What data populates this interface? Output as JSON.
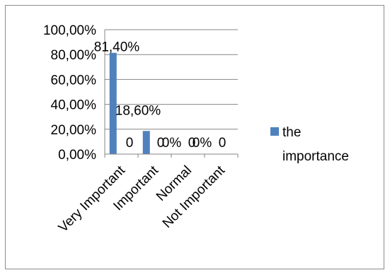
{
  "chart_data": {
    "type": "bar",
    "categories": [
      "Very Important",
      "Important",
      "Normal",
      "Not Important"
    ],
    "series": [
      {
        "name": "the importance",
        "values": [
          81.4,
          18.6,
          0,
          0
        ],
        "color": "#4f81bd"
      }
    ],
    "ylim": [
      0,
      100
    ],
    "y_ticks": [
      "0,00%",
      "20,00%",
      "40,00%",
      "60,00%",
      "80,00%",
      "100,00%"
    ],
    "data_labels": [
      "81,40%",
      "0",
      "18,60%",
      "0",
      "0%",
      "0",
      "0%",
      "0"
    ],
    "legend_labels": [
      "the",
      "importance"
    ],
    "legend_position": "right",
    "grid": true
  }
}
